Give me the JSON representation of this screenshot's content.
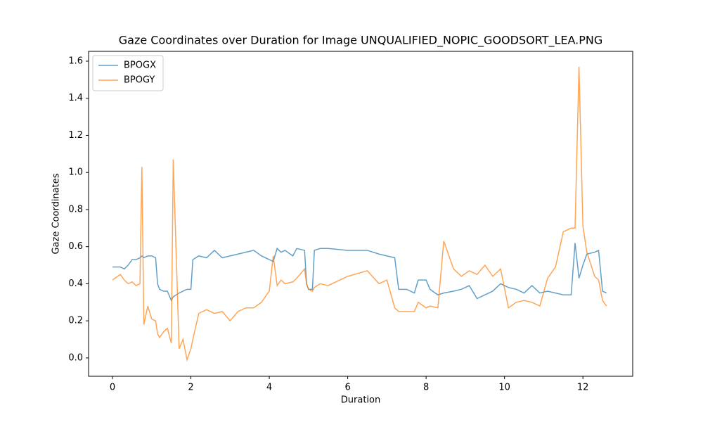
{
  "chart_data": {
    "type": "line",
    "title": "Gaze Coordinates over Duration for Image UNQUALIFIED_NOPIC_GOODSORT_LEA.PNG",
    "xlabel": "Duration",
    "ylabel": "Gaze Coordinates",
    "x": [
      0,
      0.2,
      0.3,
      0.4,
      0.5,
      0.6,
      0.7,
      0.75,
      0.8,
      0.9,
      1.0,
      1.1,
      1.15,
      1.2,
      1.3,
      1.4,
      1.5,
      1.55,
      1.7,
      1.8,
      1.9,
      2.0,
      2.05,
      2.2,
      2.4,
      2.6,
      2.8,
      3.0,
      3.2,
      3.4,
      3.6,
      3.8,
      4.0,
      4.1,
      4.2,
      4.3,
      4.4,
      4.6,
      4.7,
      4.9,
      4.95,
      5.0,
      5.1,
      5.15,
      5.3,
      5.5,
      6.0,
      6.5,
      6.8,
      7.0,
      7.2,
      7.3,
      7.5,
      7.7,
      7.8,
      8.0,
      8.1,
      8.3,
      8.45,
      8.7,
      8.9,
      9.1,
      9.3,
      9.5,
      9.7,
      9.9,
      10.1,
      10.3,
      10.5,
      10.7,
      10.9,
      11.1,
      11.3,
      11.5,
      11.7,
      11.8,
      11.9,
      12.0,
      12.1,
      12.3,
      12.4,
      12.5,
      12.6
    ],
    "series": [
      {
        "name": "BPOGX",
        "color": "#1f77b4",
        "values": [
          0.49,
          0.49,
          0.48,
          0.5,
          0.53,
          0.53,
          0.54,
          0.55,
          0.54,
          0.55,
          0.55,
          0.54,
          0.4,
          0.37,
          0.36,
          0.36,
          0.31,
          0.33,
          0.35,
          0.36,
          0.37,
          0.37,
          0.53,
          0.55,
          0.54,
          0.58,
          0.54,
          0.55,
          0.56,
          0.57,
          0.58,
          0.55,
          0.53,
          0.52,
          0.59,
          0.57,
          0.58,
          0.55,
          0.59,
          0.58,
          0.4,
          0.37,
          0.37,
          0.58,
          0.59,
          0.59,
          0.58,
          0.58,
          0.56,
          0.55,
          0.54,
          0.37,
          0.37,
          0.35,
          0.42,
          0.42,
          0.37,
          0.34,
          0.35,
          0.36,
          0.37,
          0.39,
          0.32,
          0.34,
          0.36,
          0.4,
          0.38,
          0.37,
          0.35,
          0.39,
          0.35,
          0.36,
          0.35,
          0.34,
          0.34,
          0.62,
          0.43,
          0.5,
          0.56,
          0.57,
          0.58,
          0.36,
          0.35
        ]
      },
      {
        "name": "BPOGY",
        "color": "#ff7f0e",
        "values": [
          0.42,
          0.45,
          0.42,
          0.4,
          0.41,
          0.39,
          0.4,
          1.03,
          0.18,
          0.28,
          0.21,
          0.2,
          0.13,
          0.11,
          0.14,
          0.16,
          0.08,
          1.07,
          0.05,
          0.1,
          -0.01,
          0.05,
          0.1,
          0.24,
          0.26,
          0.24,
          0.25,
          0.2,
          0.25,
          0.27,
          0.27,
          0.3,
          0.36,
          0.55,
          0.39,
          0.42,
          0.4,
          0.41,
          0.43,
          0.48,
          0.4,
          0.37,
          0.36,
          0.38,
          0.4,
          0.39,
          0.44,
          0.47,
          0.4,
          0.42,
          0.27,
          0.25,
          0.25,
          0.25,
          0.3,
          0.27,
          0.28,
          0.27,
          0.63,
          0.48,
          0.44,
          0.47,
          0.45,
          0.5,
          0.44,
          0.48,
          0.27,
          0.3,
          0.31,
          0.3,
          0.28,
          0.43,
          0.49,
          0.68,
          0.7,
          0.7,
          1.57,
          0.71,
          0.57,
          0.44,
          0.42,
          0.31,
          0.28
        ]
      }
    ],
    "xlim": [
      -0.61,
      13.27
    ],
    "xticks": [
      0,
      2,
      4,
      6,
      8,
      10,
      12
    ],
    "ylim": [
      -0.099,
      1.653
    ],
    "yticks": [
      {
        "value": 0,
        "label": "0.0"
      },
      0.2,
      0.4,
      0.6,
      0.8,
      {
        "value": 1,
        "label": "1.0"
      },
      1.2,
      1.4,
      1.6
    ],
    "legend": "upper left"
  }
}
